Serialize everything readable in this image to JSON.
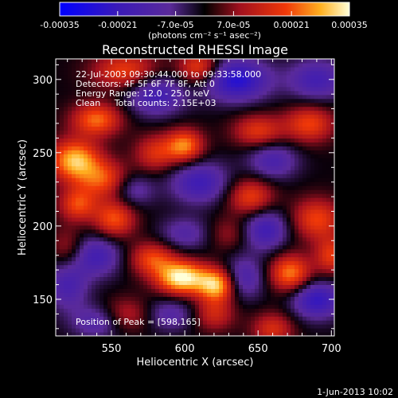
{
  "chart_data": {
    "type": "heatmap",
    "title": "Reconstructed RHESSI Image",
    "xlabel": "Heliocentric X (arcsec)",
    "ylabel": "Heliocentric Y (arcsec)",
    "xlim": [
      512,
      702
    ],
    "ylim": [
      125,
      314
    ],
    "xticks": [
      550,
      600,
      650,
      700
    ],
    "yticks": [
      150,
      200,
      250,
      300
    ],
    "colorbar": {
      "min": -0.00035,
      "max": 0.00035,
      "tick_labels": [
        "-0.00035",
        "-0.00021",
        "-7.0e-05",
        "7.0e-05",
        "0.00021",
        "0.00035"
      ],
      "unit_label": "(photons cm⁻² s⁻¹ asec⁻²)"
    },
    "annotations": [
      "22-Jul-2003 09:30:44.000 to 09:33:58.000",
      "Detectors: 4F 5F 6F 7F 8F, Att 0",
      "Energy Range: 12.0 - 25.0 keV",
      "Clean     Total counts: 2.15E+03"
    ],
    "peak_label": "Position of Peak = [598,165]",
    "peak": {
      "x": 598,
      "y": 165
    },
    "blobs": [
      {
        "x": 598,
        "y": 165,
        "v": 1.0,
        "sx": 12,
        "sy": 8
      },
      {
        "x": 622,
        "y": 160,
        "v": 0.85,
        "sx": 9,
        "sy": 8
      },
      {
        "x": 578,
        "y": 178,
        "v": 0.55,
        "sx": 11,
        "sy": 8
      },
      {
        "x": 525,
        "y": 245,
        "v": 0.85,
        "sx": 12,
        "sy": 10
      },
      {
        "x": 545,
        "y": 232,
        "v": 0.55,
        "sx": 12,
        "sy": 9
      },
      {
        "x": 600,
        "y": 255,
        "v": 0.7,
        "sx": 9,
        "sy": 8
      },
      {
        "x": 580,
        "y": 250,
        "v": 0.45,
        "sx": 10,
        "sy": 9
      },
      {
        "x": 540,
        "y": 273,
        "v": 0.65,
        "sx": 12,
        "sy": 8
      },
      {
        "x": 527,
        "y": 215,
        "v": 0.55,
        "sx": 9,
        "sy": 8
      },
      {
        "x": 552,
        "y": 205,
        "v": 0.6,
        "sx": 10,
        "sy": 9
      },
      {
        "x": 560,
        "y": 306,
        "v": 0.55,
        "sx": 16,
        "sy": 9
      },
      {
        "x": 610,
        "y": 308,
        "v": 0.6,
        "sx": 10,
        "sy": 8
      },
      {
        "x": 650,
        "y": 265,
        "v": 0.5,
        "sx": 12,
        "sy": 8
      },
      {
        "x": 685,
        "y": 270,
        "v": 0.55,
        "sx": 12,
        "sy": 9
      },
      {
        "x": 645,
        "y": 220,
        "v": 0.55,
        "sx": 11,
        "sy": 9
      },
      {
        "x": 690,
        "y": 205,
        "v": 0.55,
        "sx": 12,
        "sy": 10
      },
      {
        "x": 672,
        "y": 168,
        "v": 0.7,
        "sx": 10,
        "sy": 9
      },
      {
        "x": 700,
        "y": 180,
        "v": 0.5,
        "sx": 8,
        "sy": 9
      },
      {
        "x": 660,
        "y": 130,
        "v": 0.45,
        "sx": 10,
        "sy": 8
      },
      {
        "x": 620,
        "y": 140,
        "v": 0.4,
        "sx": 10,
        "sy": 8
      },
      {
        "x": 560,
        "y": 140,
        "v": 0.35,
        "sx": 12,
        "sy": 8
      },
      {
        "x": 520,
        "y": 185,
        "v": 0.3,
        "sx": 8,
        "sy": 10
      },
      {
        "x": 630,
        "y": 195,
        "v": 0.25,
        "sx": 10,
        "sy": 8
      },
      {
        "x": 635,
        "y": 300,
        "v": -0.75,
        "sx": 16,
        "sy": 10
      },
      {
        "x": 580,
        "y": 290,
        "v": -0.55,
        "sx": 14,
        "sy": 10
      },
      {
        "x": 690,
        "y": 300,
        "v": -0.5,
        "sx": 14,
        "sy": 10
      },
      {
        "x": 610,
        "y": 230,
        "v": -0.55,
        "sx": 14,
        "sy": 10
      },
      {
        "x": 660,
        "y": 245,
        "v": -0.45,
        "sx": 12,
        "sy": 9
      },
      {
        "x": 655,
        "y": 198,
        "v": -0.55,
        "sx": 11,
        "sy": 10
      },
      {
        "x": 690,
        "y": 150,
        "v": -0.65,
        "sx": 12,
        "sy": 9
      },
      {
        "x": 640,
        "y": 165,
        "v": -0.45,
        "sx": 10,
        "sy": 10
      },
      {
        "x": 540,
        "y": 180,
        "v": -0.5,
        "sx": 12,
        "sy": 10
      },
      {
        "x": 520,
        "y": 160,
        "v": -0.45,
        "sx": 10,
        "sy": 12
      },
      {
        "x": 565,
        "y": 225,
        "v": -0.35,
        "sx": 10,
        "sy": 8
      },
      {
        "x": 600,
        "y": 195,
        "v": -0.35,
        "sx": 12,
        "sy": 8
      },
      {
        "x": 590,
        "y": 140,
        "v": -0.35,
        "sx": 12,
        "sy": 8
      },
      {
        "x": 540,
        "y": 135,
        "v": -0.4,
        "sx": 12,
        "sy": 8
      }
    ]
  },
  "timestamp": "1-Jun-2013 10:02"
}
